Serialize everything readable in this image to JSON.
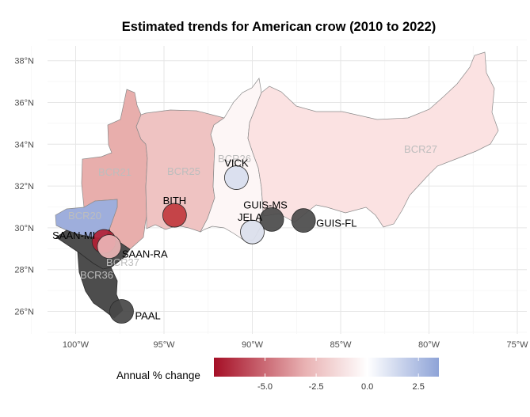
{
  "title": "Estimated trends for American crow (2010 to 2022)",
  "x_ticks": [
    {
      "lon": -100,
      "label": "100°W"
    },
    {
      "lon": -95,
      "label": "95°W"
    },
    {
      "lon": -90,
      "label": "90°W"
    },
    {
      "lon": -85,
      "label": "85°W"
    },
    {
      "lon": -80,
      "label": "80°W"
    },
    {
      "lon": -75,
      "label": "75°W"
    }
  ],
  "y_ticks": [
    {
      "lat": 26,
      "label": "26°N"
    },
    {
      "lat": 28,
      "label": "28°N"
    },
    {
      "lat": 30,
      "label": "30°N"
    },
    {
      "lat": 32,
      "label": "32°N"
    },
    {
      "lat": 34,
      "label": "34°N"
    },
    {
      "lat": 36,
      "label": "36°N"
    },
    {
      "lat": 38,
      "label": "38°N"
    }
  ],
  "regions": [
    {
      "name": "BCR21",
      "color": "#e8aeac"
    },
    {
      "name": "BCR25",
      "color": "#efc3c2"
    },
    {
      "name": "BCR26",
      "color": "#fdf6f6"
    },
    {
      "name": "BCR27",
      "color": "#fbe2e2"
    },
    {
      "name": "BCR20",
      "color": "#9eaedc"
    },
    {
      "name": "BCR37",
      "color": "#4d4d4d"
    },
    {
      "name": "BCR36",
      "color": "#4d4d4d"
    }
  ],
  "sites": [
    {
      "name": "VICK",
      "lon": -90.9,
      "lat": 32.4,
      "color": "#d8ddee",
      "trend_pct": 0.8
    },
    {
      "name": "BITH",
      "lon": -94.4,
      "lat": 30.6,
      "color": "#c1393e",
      "trend_pct": -5.8
    },
    {
      "name": "GUIS-MS",
      "lon": -88.9,
      "lat": 30.4,
      "color": "#4a4a4a",
      "trend_pct": null
    },
    {
      "name": "GUIS-FL",
      "lon": -87.1,
      "lat": 30.35,
      "color": "#4a4a4a",
      "trend_pct": null
    },
    {
      "name": "JELA",
      "lon": -90.0,
      "lat": 29.8,
      "color": "#dadeec",
      "trend_pct": 0.7
    },
    {
      "name": "SAAN-MI",
      "lon": -98.4,
      "lat": 29.35,
      "color": "#b32034",
      "trend_pct": -7.0
    },
    {
      "name": "SAAN-RA",
      "lon": -98.1,
      "lat": 29.1,
      "color": "#eab5b6",
      "trend_pct": -2.3
    },
    {
      "name": "PAAL",
      "lon": -97.4,
      "lat": 26.0,
      "color": "#474747",
      "trend_pct": null
    }
  ],
  "legend": {
    "title": "Annual % change",
    "min": -7.5,
    "max": 3.5,
    "ticks": [
      {
        "value": -5.0,
        "label": "-5.0"
      },
      {
        "value": -2.5,
        "label": "-2.5"
      },
      {
        "value": 0.0,
        "label": "0.0"
      },
      {
        "value": 2.5,
        "label": "2.5"
      }
    ],
    "colors": {
      "low": "#a50f26",
      "mid": "#ffffff",
      "high": "#8ea3d7"
    }
  }
}
